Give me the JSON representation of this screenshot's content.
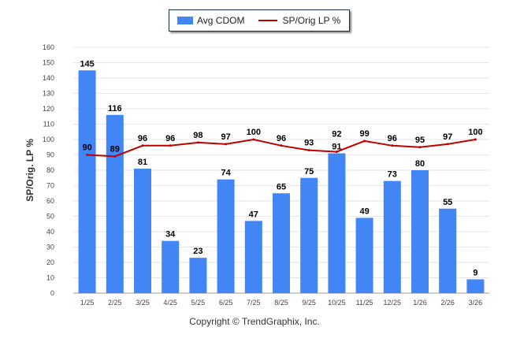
{
  "chart_data": {
    "type": "bar",
    "ylabel": "SP/Orig. LP %",
    "ylim": [
      0,
      160
    ],
    "yticks": [
      0,
      10,
      20,
      30,
      40,
      50,
      60,
      70,
      80,
      90,
      100,
      110,
      120,
      130,
      140,
      150,
      160
    ],
    "grid": true,
    "legend_placement": "top-center",
    "categories": [
      "1/25",
      "2/25",
      "3/25",
      "4/25",
      "5/25",
      "6/25",
      "7/25",
      "8/25",
      "9/25",
      "10/25",
      "11/25",
      "12/25",
      "1/26",
      "2/26",
      "3/26"
    ],
    "series": [
      {
        "name": "Avg CDOM",
        "type": "bar",
        "color": "#4285f4",
        "values": [
          145,
          116,
          81,
          34,
          23,
          74,
          47,
          65,
          75,
          91,
          49,
          73,
          80,
          55,
          9
        ]
      },
      {
        "name": "SP/Orig LP %",
        "type": "line",
        "color": "#c00000",
        "values": [
          90,
          89,
          96,
          96,
          98,
          97,
          100,
          96,
          93,
          92,
          99,
          96,
          95,
          97,
          100
        ]
      }
    ]
  },
  "copyright": "Copyright © TrendGraphix, Inc."
}
